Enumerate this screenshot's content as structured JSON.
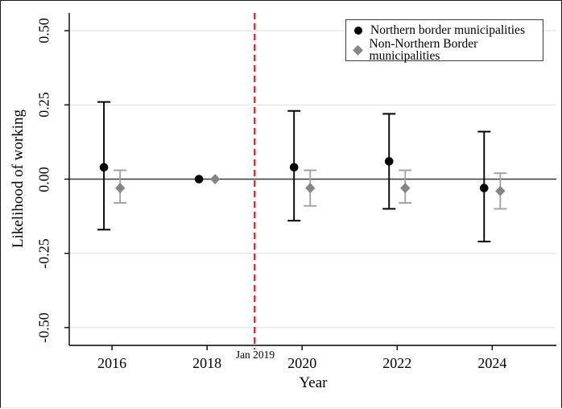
{
  "figure": {
    "background": "#ffffff",
    "border_color": "#1a1a1a"
  },
  "chart_data": {
    "type": "scatter",
    "subtype": "coefficient-plot-with-error-bars",
    "title": "",
    "xlabel": "Year",
    "ylabel": "Likelihood of working",
    "xlim": [
      2015.1,
      2025.35
    ],
    "ylim": [
      -0.56,
      0.56
    ],
    "xticks": [
      2016,
      2018,
      2020,
      2022,
      2024
    ],
    "xtick_labels": [
      "2016",
      "2018",
      "2020",
      "2022",
      "2024"
    ],
    "yticks": [
      0.5,
      0.25,
      0,
      -0.25,
      -0.5
    ],
    "ytick_labels": [
      "0.50",
      "0.25",
      "0.00",
      "-0.25",
      "-0.50"
    ],
    "grid": "horizontal",
    "gridline_color": "#e7e7e7",
    "axis_color": "#000000",
    "zero_line": {
      "y": 0,
      "color": "#3a3a3a"
    },
    "reference_line": {
      "x": 2019,
      "label": "Jan 2019",
      "color": "#ee1111",
      "style": "dashed"
    },
    "x": [
      2016,
      2018,
      2020,
      2022,
      2024
    ],
    "series": [
      {
        "name": "Northern border municipalities",
        "marker": "circle",
        "color": "#000000",
        "ci_color": "#000000",
        "x_offset": -0.17,
        "estimates": [
          0.04,
          0.0,
          0.04,
          0.06,
          -0.03
        ],
        "ci_low": [
          -0.17,
          0.0,
          -0.14,
          -0.1,
          -0.21
        ],
        "ci_high": [
          0.26,
          0.0,
          0.23,
          0.22,
          0.16
        ]
      },
      {
        "name": "Non-Northern Border municipalities",
        "marker": "diamond",
        "color": "#858585",
        "ci_color": "#a3a3a3",
        "x_offset": 0.17,
        "estimates": [
          -0.03,
          0.0,
          -0.03,
          -0.03,
          -0.04
        ],
        "ci_low": [
          -0.08,
          0.0,
          -0.09,
          -0.08,
          -0.1
        ],
        "ci_high": [
          0.03,
          0.0,
          0.03,
          0.03,
          0.02
        ]
      }
    ],
    "legend": {
      "position": "top-right",
      "border": true
    }
  }
}
